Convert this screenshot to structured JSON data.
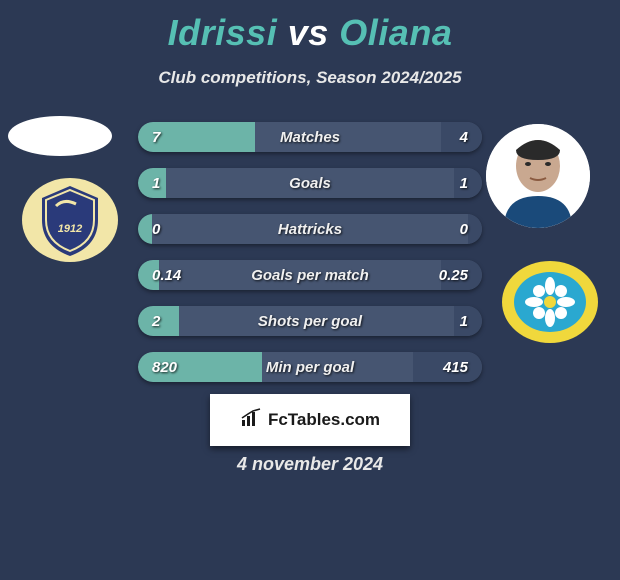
{
  "title": {
    "player1": "Idrissi",
    "vs": "vs",
    "player2": "Oliana"
  },
  "subtitle": "Club competitions, Season 2024/2025",
  "stats": [
    {
      "label": "Matches",
      "left_val": "7",
      "right_val": "4",
      "left_pct": 34,
      "right_pct": 12
    },
    {
      "label": "Goals",
      "left_val": "1",
      "right_val": "1",
      "left_pct": 8,
      "right_pct": 8
    },
    {
      "label": "Hattricks",
      "left_val": "0",
      "right_val": "0",
      "left_pct": 4,
      "right_pct": 4
    },
    {
      "label": "Goals per match",
      "left_val": "0.14",
      "right_val": "0.25",
      "left_pct": 6,
      "right_pct": 12
    },
    {
      "label": "Shots per goal",
      "left_val": "2",
      "right_val": "1",
      "left_pct": 12,
      "right_pct": 8
    },
    {
      "label": "Min per goal",
      "left_val": "820",
      "right_val": "415",
      "left_pct": 36,
      "right_pct": 20
    }
  ],
  "colors": {
    "background": "#2c3954",
    "title_accent": "#56c0b4",
    "bar_bg": "#465571",
    "bar_left": "#6cb4a8",
    "bar_right": "#3a4966",
    "text": "#ffffff",
    "subtitle": "#e8e8e8",
    "footer_bg": "#ffffff",
    "footer_text": "#1a1a1a",
    "badge_left_bg": "#f2e6a8",
    "badge_left_shield": "#2a3a7a",
    "badge_right_outer": "#f0d83c",
    "badge_right_inner": "#2aa8d0"
  },
  "footer": {
    "brand": "FcTables.com"
  },
  "date": "4 november 2024",
  "icons": {
    "chart": "chart-icon",
    "avatar_left": "player-silhouette",
    "avatar_right": "player-photo",
    "badge_left": "club-shield-left",
    "badge_right": "club-shield-right"
  }
}
